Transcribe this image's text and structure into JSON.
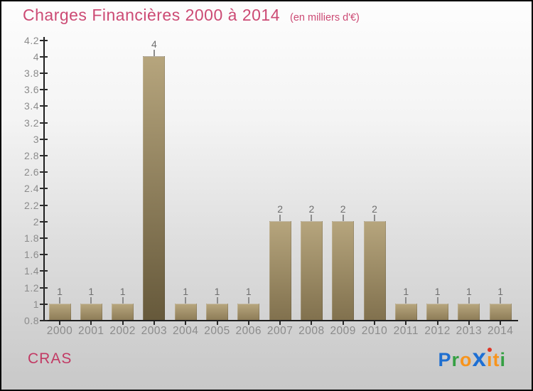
{
  "page": {
    "background_top": "#fdfdfd",
    "background_bottom": "#c8c8c8",
    "border_color": "#000000"
  },
  "header": {
    "title": "Charges Financières 2000 à 2014",
    "subtitle": "(en milliers d'€)",
    "title_color": "#cc4a74"
  },
  "chart_data": {
    "type": "bar",
    "title": "Charges Financières 2000 à 2014",
    "subtitle": "(en milliers d'€)",
    "categories": [
      "2000",
      "2001",
      "2002",
      "2003",
      "2004",
      "2005",
      "2006",
      "2007",
      "2008",
      "2009",
      "2010",
      "2011",
      "2012",
      "2013",
      "2014"
    ],
    "values": [
      1,
      1,
      1,
      4,
      1,
      1,
      1,
      2,
      2,
      2,
      2,
      1,
      1,
      1,
      1
    ],
    "xlabel": "",
    "ylabel": "",
    "ylim": [
      0.8,
      4.2
    ],
    "ytick_step": 0.2,
    "grid": false,
    "legend": false,
    "bar_labels_shown": true,
    "colors": {
      "bar_top": "#b6a57d",
      "bar_bottom_min": "#8e7d58",
      "bar_bottom_max": "#66593b",
      "axis": "#1e1e1e",
      "tick_label": "#8b8b8b",
      "value_label": "#6e6e6e"
    }
  },
  "footer": {
    "company": "CRAS",
    "company_color": "#c23a64",
    "logo": {
      "name": "Proxiti",
      "letters": [
        {
          "ch": "P",
          "color": "#1f6fd0"
        },
        {
          "ch": "r",
          "color": "#35a043"
        },
        {
          "ch": "o",
          "color": "#f7941d"
        },
        {
          "ch": "x",
          "color": "#1d6fd4",
          "big": true
        },
        {
          "ch": "i",
          "color": "#f7941d",
          "dot": "#e03424"
        },
        {
          "ch": "t",
          "color": "#f7941d"
        },
        {
          "ch": "i",
          "color": "#35a043"
        }
      ]
    }
  }
}
